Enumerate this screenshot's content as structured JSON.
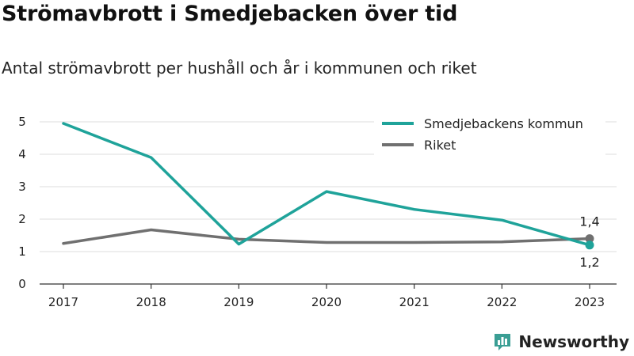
{
  "header": {
    "title": "Strömavbrott i Smedjebacken över tid",
    "subtitle": "Antal strömavbrott per hushåll och år i kommunen och riket"
  },
  "brand": {
    "name": "Newsworthy",
    "icon": "newsworthy-logo-icon",
    "color": "#3a9e94"
  },
  "chart_data": {
    "type": "line",
    "title": "Strömavbrott i Smedjebacken över tid",
    "subtitle": "Antal strömavbrott per hushåll och år i kommunen och riket",
    "xlabel": "",
    "ylabel": "",
    "categories": [
      "2017",
      "2018",
      "2019",
      "2020",
      "2021",
      "2022",
      "2023"
    ],
    "ylim": [
      0,
      5
    ],
    "yticks": [
      "0",
      "1",
      "2",
      "3",
      "4",
      "5"
    ],
    "grid": true,
    "legend_position": "top-right",
    "series": [
      {
        "name": "Smedjebackens kommun",
        "color": "#1fa39a",
        "values": [
          4.95,
          3.9,
          1.23,
          2.85,
          2.3,
          1.97,
          1.2
        ],
        "end_label": "1,2",
        "end_label_position": "below"
      },
      {
        "name": "Riket",
        "color": "#707070",
        "values": [
          1.25,
          1.67,
          1.38,
          1.28,
          1.28,
          1.3,
          1.4
        ],
        "end_label": "1,4",
        "end_label_position": "above"
      }
    ]
  }
}
